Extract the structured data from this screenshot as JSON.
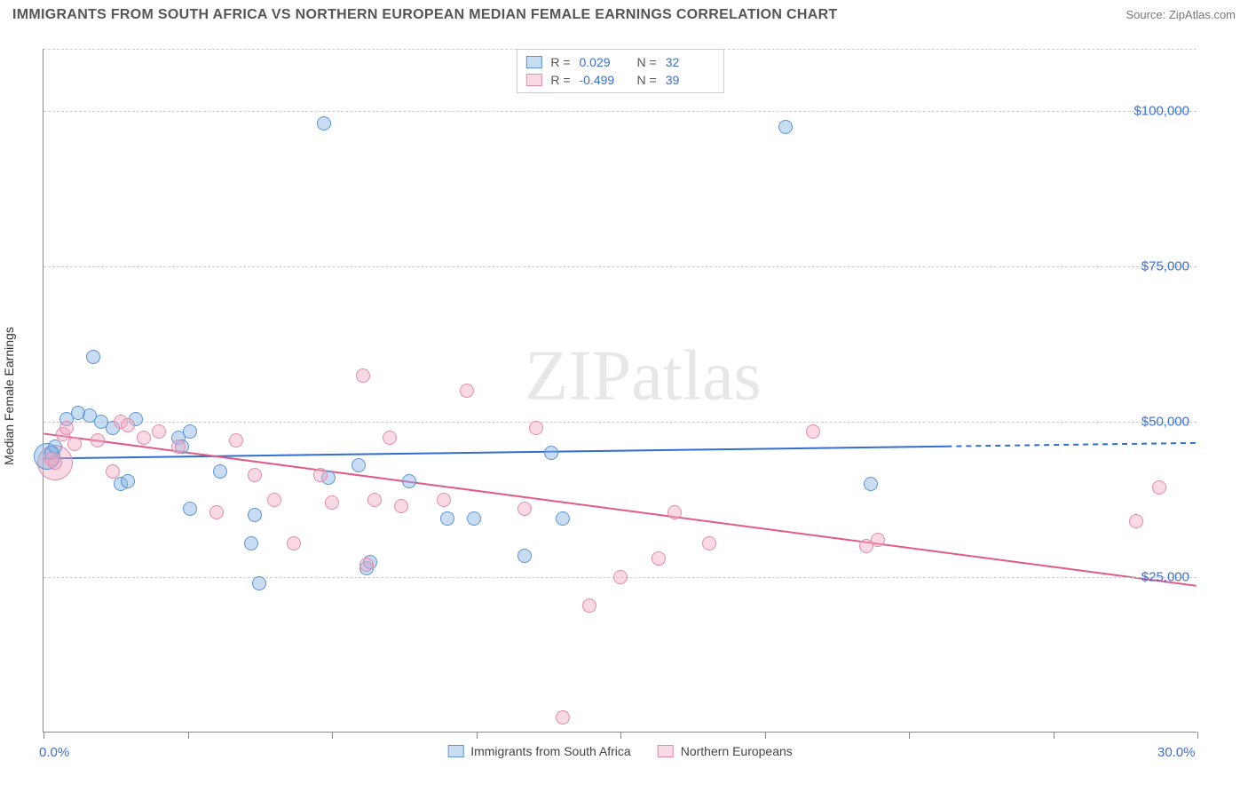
{
  "title": "IMMIGRANTS FROM SOUTH AFRICA VS NORTHERN EUROPEAN MEDIAN FEMALE EARNINGS CORRELATION CHART",
  "source": "Source: ZipAtlas.com",
  "y_axis_label": "Median Female Earnings",
  "watermark": "ZIPatlas",
  "chart": {
    "type": "scatter",
    "xlim": [
      0,
      30
    ],
    "ylim": [
      0,
      110000
    ],
    "background_color": "#ffffff",
    "grid_color": "#cccccc",
    "grid_dash": "4,4",
    "y_gridlines": [
      25000,
      50000,
      75000,
      100000
    ],
    "y_tick_labels": [
      "$25,000",
      "$50,000",
      "$75,000",
      "$100,000"
    ],
    "x_tick_positions": [
      0,
      3.75,
      7.5,
      11.25,
      15,
      18.75,
      22.5,
      26.25,
      30
    ],
    "x_tick_labels_shown": {
      "0": "0.0%",
      "30": "30.0%"
    },
    "x_tick_label_color": "#3b6fd6",
    "y_tick_label_color": "#3b6fd6",
    "axis_color": "#888888",
    "label_fontsize": 14,
    "tick_fontsize": 15,
    "marker_radius": 8,
    "marker_border_width": 1.5,
    "marker_fill_opacity": 0.35
  },
  "series": [
    {
      "id": "sa",
      "label": "Immigrants from South Africa",
      "color_stroke": "#5a94d6",
      "color_fill": "rgba(135,179,226,0.45)",
      "R": "0.029",
      "N": "32",
      "trend": {
        "x1": 0,
        "y1": 44000,
        "x2": 30,
        "y2": 46500,
        "solid_until_x": 23.5,
        "color": "#2f6fd0",
        "width": 2
      },
      "points": [
        [
          0.2,
          45000
        ],
        [
          0.3,
          46000
        ],
        [
          0.6,
          50500
        ],
        [
          0.9,
          51500
        ],
        [
          1.2,
          51000
        ],
        [
          1.3,
          60500
        ],
        [
          1.5,
          50000
        ],
        [
          1.8,
          49000
        ],
        [
          2.0,
          40000
        ],
        [
          2.2,
          40500
        ],
        [
          2.4,
          50500
        ],
        [
          3.5,
          47500
        ],
        [
          3.6,
          46000
        ],
        [
          3.8,
          36000
        ],
        [
          3.8,
          48500
        ],
        [
          4.6,
          42000
        ],
        [
          5.4,
          30500
        ],
        [
          5.5,
          35000
        ],
        [
          5.6,
          24000
        ],
        [
          7.3,
          98000
        ],
        [
          7.4,
          41000
        ],
        [
          8.2,
          43000
        ],
        [
          8.4,
          26500
        ],
        [
          8.5,
          27500
        ],
        [
          9.5,
          40500
        ],
        [
          10.5,
          34500
        ],
        [
          11.2,
          34500
        ],
        [
          12.5,
          28500
        ],
        [
          13.2,
          45000
        ],
        [
          13.5,
          34500
        ],
        [
          19.3,
          97500
        ],
        [
          21.5,
          40000
        ]
      ]
    },
    {
      "id": "ne",
      "label": "Northern Europeans",
      "color_stroke": "#e48bab",
      "color_fill": "rgba(240,170,195,0.45)",
      "R": "-0.499",
      "N": "39",
      "trend": {
        "x1": 0,
        "y1": 48000,
        "x2": 30,
        "y2": 23500,
        "solid_until_x": 30,
        "color": "#e05a8a",
        "width": 2
      },
      "points": [
        [
          0.2,
          44000
        ],
        [
          0.3,
          43500
        ],
        [
          0.5,
          48000
        ],
        [
          0.6,
          49000
        ],
        [
          0.8,
          46500
        ],
        [
          1.4,
          47000
        ],
        [
          1.8,
          42000
        ],
        [
          2.0,
          50000
        ],
        [
          2.2,
          49500
        ],
        [
          2.6,
          47500
        ],
        [
          3.0,
          48500
        ],
        [
          3.5,
          46000
        ],
        [
          4.5,
          35500
        ],
        [
          5.0,
          47000
        ],
        [
          5.5,
          41500
        ],
        [
          6.0,
          37500
        ],
        [
          6.5,
          30500
        ],
        [
          7.2,
          41500
        ],
        [
          7.5,
          37000
        ],
        [
          8.3,
          57500
        ],
        [
          8.4,
          27000
        ],
        [
          8.6,
          37500
        ],
        [
          9.0,
          47500
        ],
        [
          9.3,
          36500
        ],
        [
          10.4,
          37500
        ],
        [
          11.0,
          55000
        ],
        [
          12.5,
          36000
        ],
        [
          12.8,
          49000
        ],
        [
          13.5,
          2500
        ],
        [
          14.2,
          20500
        ],
        [
          15.0,
          25000
        ],
        [
          16.0,
          28000
        ],
        [
          16.4,
          35500
        ],
        [
          17.3,
          30500
        ],
        [
          20.0,
          48500
        ],
        [
          21.4,
          30000
        ],
        [
          21.7,
          31000
        ],
        [
          28.4,
          34000
        ],
        [
          29.0,
          39500
        ]
      ]
    }
  ],
  "legend_top": {
    "r_label": "R =",
    "n_label": "N ="
  },
  "large_points": [
    {
      "series": "ne",
      "x": 0.3,
      "y": 43500,
      "r": 20
    },
    {
      "series": "sa",
      "x": 0.1,
      "y": 44500,
      "r": 15
    }
  ]
}
